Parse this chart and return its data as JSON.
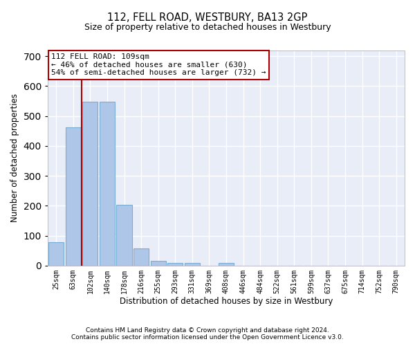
{
  "title": "112, FELL ROAD, WESTBURY, BA13 2GP",
  "subtitle": "Size of property relative to detached houses in Westbury",
  "xlabel": "Distribution of detached houses by size in Westbury",
  "ylabel": "Number of detached properties",
  "footer_line1": "Contains HM Land Registry data © Crown copyright and database right 2024.",
  "footer_line2": "Contains public sector information licensed under the Open Government Licence v3.0.",
  "categories": [
    "25sqm",
    "63sqm",
    "102sqm",
    "140sqm",
    "178sqm",
    "216sqm",
    "255sqm",
    "293sqm",
    "331sqm",
    "369sqm",
    "408sqm",
    "446sqm",
    "484sqm",
    "522sqm",
    "561sqm",
    "599sqm",
    "637sqm",
    "675sqm",
    "714sqm",
    "752sqm",
    "790sqm"
  ],
  "values": [
    78,
    461,
    548,
    548,
    204,
    57,
    15,
    10,
    8,
    0,
    8,
    0,
    0,
    0,
    0,
    0,
    0,
    0,
    0,
    0,
    0
  ],
  "bar_color": "#aec6e8",
  "bar_edge_color": "#7aadd4",
  "background_color": "#e8edf8",
  "grid_color": "#ffffff",
  "annotation_text": "112 FELL ROAD: 109sqm\n← 46% of detached houses are smaller (630)\n54% of semi-detached houses are larger (732) →",
  "vline_color": "#aa0000",
  "box_color": "#aa0000",
  "ylim": [
    0,
    720
  ],
  "yticks": [
    0,
    100,
    200,
    300,
    400,
    500,
    600,
    700
  ]
}
